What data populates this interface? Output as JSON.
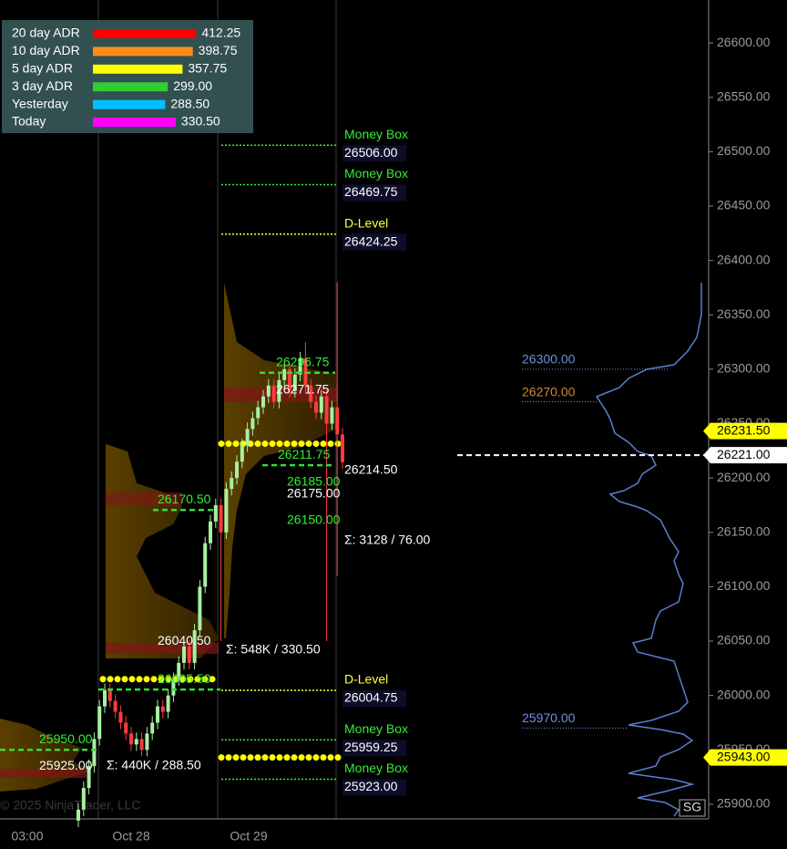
{
  "chart_data": {
    "type": "candlestick",
    "ylim": [
      25886.5,
      26639.5
    ],
    "yticks": [
      {
        "value": 25900,
        "label": "25900.00"
      },
      {
        "value": 25950,
        "label": "25950.00"
      },
      {
        "value": 26000,
        "label": "26000.00"
      },
      {
        "value": 26050,
        "label": "26050.00"
      },
      {
        "value": 26100,
        "label": "26100.00"
      },
      {
        "value": 26150,
        "label": "26150.00"
      },
      {
        "value": 26200,
        "label": "26200.00"
      },
      {
        "value": 26250,
        "label": "26250.00"
      },
      {
        "value": 26300,
        "label": "26300.00"
      },
      {
        "value": 26350,
        "label": "26350.00"
      },
      {
        "value": 26400,
        "label": "26400.00"
      },
      {
        "value": 26450,
        "label": "26450.00"
      },
      {
        "value": 26500,
        "label": "26500.00"
      },
      {
        "value": 26550,
        "label": "26550.00"
      },
      {
        "value": 26600,
        "label": "26600.00"
      }
    ],
    "time_labels": [
      "03:00",
      "Oct 28",
      "Oct 29"
    ],
    "open": [
      25885,
      25895,
      25915,
      25935,
      25960,
      25990,
      26005,
      25995,
      25985,
      25975,
      25965,
      25955,
      25960,
      25950,
      25965,
      25975,
      25990,
      25985,
      26000,
      26015,
      26030,
      26045,
      26030,
      26060,
      26100,
      26140,
      26160,
      26175,
      26150,
      26190,
      26200,
      26215,
      26230,
      26245,
      26255,
      26265,
      26275,
      26285,
      26270,
      26290,
      26300,
      26280,
      26295,
      26310,
      26285,
      26270,
      26260,
      26275,
      26250,
      26265,
      26240
    ],
    "high": [
      25901,
      25921,
      25941,
      25966,
      25996,
      26011,
      26011,
      26001,
      25991,
      25981,
      25971,
      25966,
      25966,
      25971,
      25981,
      25996,
      25996,
      26006,
      26021,
      26036,
      26051,
      26051,
      26066,
      26106,
      26146,
      26166,
      26181,
      26181,
      26196,
      26206,
      26221,
      26236,
      26251,
      26261,
      26271,
      26281,
      26291,
      26291,
      26296,
      26306,
      26306,
      26301,
      26316,
      26325,
      26291,
      26276,
      26281,
      26281,
      26271,
      26380,
      26246
    ],
    "low": [
      25879,
      25889,
      25909,
      25929,
      25954,
      25984,
      25989,
      25979,
      25969,
      25959,
      25949,
      25949,
      25944,
      25944,
      25959,
      25969,
      25979,
      25979,
      25994,
      26009,
      26024,
      26024,
      26024,
      26054,
      26094,
      26134,
      26154,
      26050,
      26144,
      26184,
      26194,
      26209,
      26224,
      26239,
      26249,
      26259,
      26269,
      26264,
      26264,
      26284,
      26274,
      26274,
      26289,
      26279,
      26264,
      26254,
      26254,
      26050,
      26244,
      26110,
      26208.5
    ],
    "close": [
      25895,
      25915,
      25935,
      25960,
      25990,
      26005,
      25995,
      25985,
      25975,
      25965,
      25955,
      25960,
      25950,
      25965,
      25975,
      25990,
      25985,
      26000,
      26015,
      26030,
      26045,
      26030,
      26060,
      26100,
      26140,
      26160,
      26175,
      26150,
      26190,
      26200,
      26215,
      26230,
      26245,
      26255,
      26265,
      26275,
      26285,
      26270,
      26290,
      26300,
      26280,
      26295,
      26310,
      26285,
      26270,
      26260,
      26275,
      26250,
      26265,
      26240,
      26214.5
    ],
    "up_color": "#a8f0a0",
    "down_color": "#ff3b3b",
    "adr_legend": [
      {
        "name": "20 day ADR",
        "value": 412.25,
        "label": "412.25",
        "color": "#ff0000"
      },
      {
        "name": "10 day ADR",
        "value": 398.75,
        "label": "398.75",
        "color": "#ff8c1a"
      },
      {
        "name": "5 day ADR",
        "value": 357.75,
        "label": "357.75",
        "color": "#ffff00"
      },
      {
        "name": "3 day ADR",
        "value": 299,
        "label": "299.00",
        "color": "#33cc33"
      },
      {
        "name": "Yesterday",
        "value": 288.5,
        "label": "288.50",
        "color": "#00bfff"
      },
      {
        "name": "Today",
        "value": 330.5,
        "label": "330.50",
        "color": "#ff00ff"
      }
    ],
    "levels": [
      {
        "name": "Money Box",
        "value": 26506,
        "label": "26506.00",
        "color": "#33ee33"
      },
      {
        "name": "Money Box",
        "value": 26469.75,
        "label": "26469.75",
        "color": "#33ee33"
      },
      {
        "name": "D-Level",
        "value": 26424.25,
        "label": "26424.25",
        "color": "#ffff44"
      },
      {
        "name": "D-Level",
        "value": 26004.75,
        "label": "26004.75",
        "color": "#ffff44"
      },
      {
        "name": "Money Box",
        "value": 25959.25,
        "label": "25959.25",
        "color": "#33ee33"
      },
      {
        "name": "Money Box",
        "value": 25923,
        "label": "25923.00",
        "color": "#33ee33"
      }
    ],
    "price_labels": [
      {
        "value": 26296.75,
        "label": "26296.75",
        "color": "#33ee33"
      },
      {
        "value": 26271.75,
        "label": "26271.75",
        "color": "#ffffff"
      },
      {
        "value": 26211.75,
        "label": "26211.75",
        "color": "#33ee33"
      },
      {
        "value": 26214.5,
        "label": "26214.50",
        "color": "#ffffff"
      },
      {
        "value": 26185,
        "label": "26185.00",
        "color": "#33ee33"
      },
      {
        "value": 26175,
        "label": "26175.00",
        "color": "#ffffff"
      },
      {
        "value": 26150,
        "label": "26150.00",
        "color": "#33ee33"
      },
      {
        "value": 26170.5,
        "label": "26170.50",
        "color": "#33ee33"
      },
      {
        "value": 26040.5,
        "label": "26040.50",
        "color": "#ffffff"
      },
      {
        "value": 26005.5,
        "label": "26005.50",
        "color": "#33ee33"
      },
      {
        "value": 25950,
        "label": "25950.00",
        "color": "#33ee33"
      },
      {
        "value": 25925,
        "label": "25925.00",
        "color": "#ffffff"
      }
    ],
    "stats": [
      "Σ: 3128 / 76.00",
      "Σ: 548K / 330.50",
      "Σ: 440K / 288.50"
    ],
    "poc_lines": [
      26231.5,
      26015,
      25943
    ],
    "axis_markers": [
      {
        "value": 26231.5,
        "label": "26231.50",
        "color": "#ffff00"
      },
      {
        "value": 26221,
        "label": "26221.00",
        "color": "#ffffff"
      },
      {
        "value": 25943,
        "label": "25943.00",
        "color": "#ffff00"
      }
    ],
    "profile_labels": [
      {
        "value": 26300,
        "label": "26300.00",
        "color": "#6f8fdf"
      },
      {
        "value": 26270,
        "label": "26270.00",
        "color": "#d4882a"
      },
      {
        "value": 25970,
        "label": "25970.00",
        "color": "#6f8fdf"
      }
    ],
    "watermark": "© 2025 NinjaTrader, LLC",
    "badge": "SG"
  }
}
